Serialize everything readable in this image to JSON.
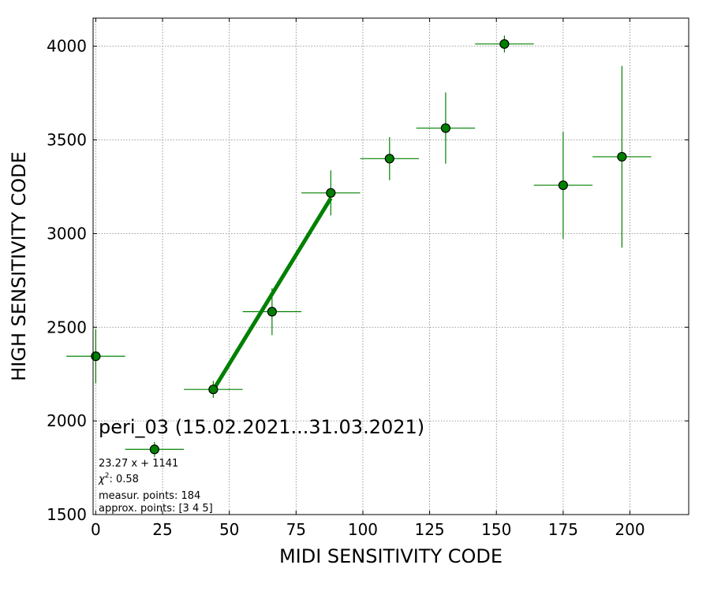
{
  "chart_data": {
    "type": "scatter",
    "xlabel": "MIDI SENSITIVITY CODE",
    "ylabel": "HIGH SENSITIVITY CODE",
    "xlim": [
      -1,
      222
    ],
    "ylim": [
      1500,
      4150
    ],
    "xticks": [
      0,
      25,
      50,
      75,
      100,
      125,
      150,
      175,
      200
    ],
    "yticks": [
      1500,
      2000,
      2500,
      3000,
      3500,
      4000
    ],
    "grid": true,
    "colors": {
      "series": "#008000",
      "marker_edge": "#000000",
      "grid": "#808080"
    },
    "points": [
      {
        "x": 0,
        "y": 2345,
        "xerr": 11,
        "yerr": 145
      },
      {
        "x": 22,
        "y": 1848,
        "xerr": 11,
        "yerr": 40
      },
      {
        "x": 44,
        "y": 2168,
        "xerr": 11,
        "yerr": 45
      },
      {
        "x": 66,
        "y": 2583,
        "xerr": 11,
        "yerr": 125
      },
      {
        "x": 88,
        "y": 3217,
        "xerr": 11,
        "yerr": 120
      },
      {
        "x": 110,
        "y": 3400,
        "xerr": 11,
        "yerr": 115
      },
      {
        "x": 131,
        "y": 3563,
        "xerr": 11,
        "yerr": 190
      },
      {
        "x": 153,
        "y": 4012,
        "xerr": 11,
        "yerr": 45
      },
      {
        "x": 175,
        "y": 3258,
        "xerr": 11,
        "yerr": 285
      },
      {
        "x": 197,
        "y": 3410,
        "xerr": 11,
        "yerr": 485
      }
    ],
    "fit": {
      "slope": 23.27,
      "intercept": 1141,
      "x_range": [
        44,
        88
      ]
    },
    "annotations": {
      "title": "peri_03 (15.02.2021...31.03.2021)",
      "equation": "23.27 x + 1141",
      "chi2_label": "χ",
      "chi2_sup": "2",
      "chi2_value": ": 0.58",
      "measured": "measur. points: 184",
      "approx": "approx. points: [3 4 5]"
    }
  }
}
